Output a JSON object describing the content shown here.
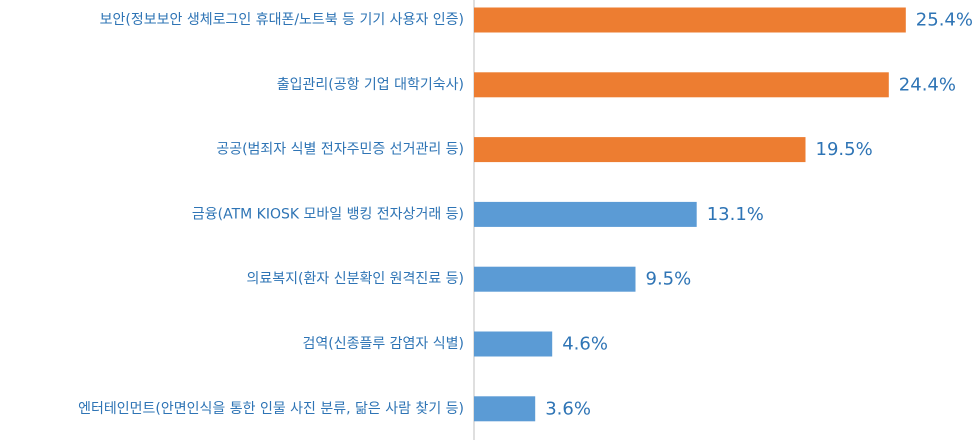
{
  "chart_data": {
    "type": "bar",
    "orientation": "horizontal",
    "categories": [
      "보안(정보보안 생체로그인 휴대폰/노트북 등 기기 사용자 인증)",
      "출입관리(공항 기업 대학기숙사)",
      "공공(범죄자 식별 전자주민증 선거관리 등)",
      "금융(ATM KIOSK 모바일 뱅킹 전자상거래 등)",
      "의료복지(환자 신분확인 원격진료 등)",
      "검역(신종플루 감염자 식별)",
      "엔터테인먼트(안면인식을 통한 인물 사진 분류, 닮은 사람 찾기 등)"
    ],
    "values": [
      25.4,
      24.4,
      19.5,
      13.1,
      9.5,
      4.6,
      3.6
    ],
    "value_labels": [
      "25.4%",
      "24.4%",
      "19.5%",
      "13.1%",
      "9.5%",
      "4.6%",
      "3.6%"
    ],
    "bar_colors": [
      "#ED7D31",
      "#ED7D31",
      "#ED7D31",
      "#5B9BD5",
      "#5B9BD5",
      "#5B9BD5",
      "#5B9BD5"
    ],
    "label_color": "#2E74B5",
    "value_label_color": "#2E74B5",
    "axis_color": "#BFBFBF",
    "xlim": [
      0,
      28
    ],
    "grid": false,
    "legend": "none"
  }
}
